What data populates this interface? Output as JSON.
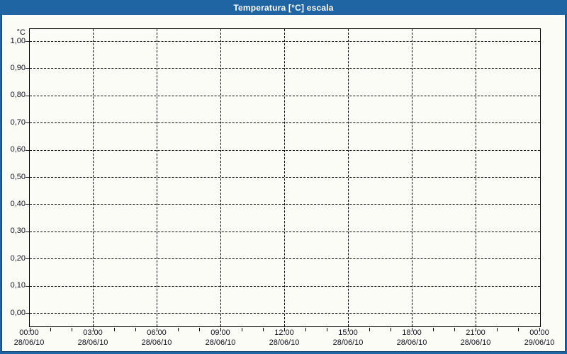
{
  "window": {
    "title": "Temperatura [°C] escala"
  },
  "colors": {
    "frame": "#2065A3",
    "frame_inner_line": "#1A4470",
    "titlebar_text": "#FFFFFF",
    "content_background": "#FCFCF6",
    "plot_border": "#000000",
    "gridline": "#000000",
    "axis_label_text": "#101020"
  },
  "chart_data": {
    "type": "line",
    "title": "Temperatura [°C] escala",
    "ylabel_unit": "°C",
    "y_axis": {
      "min": 0.0,
      "max": 1.0,
      "step": 0.1,
      "decimal_separator": ",",
      "tick_labels": [
        "1,00",
        "0,90",
        "0,80",
        "0,70",
        "0,60",
        "0,50",
        "0,40",
        "0,30",
        "0,20",
        "0,10",
        "0,00"
      ]
    },
    "x_axis": {
      "major_tick_interval": "3h",
      "minor_tick_interval": "1h",
      "ticks": [
        {
          "time": "00:00",
          "date": "28/06/10"
        },
        {
          "time": "03:00",
          "date": "28/06/10"
        },
        {
          "time": "06:00",
          "date": "28/06/10"
        },
        {
          "time": "09:00",
          "date": "28/06/10"
        },
        {
          "time": "12:00",
          "date": "28/06/10"
        },
        {
          "time": "15:00",
          "date": "28/06/10"
        },
        {
          "time": "18:00",
          "date": "28/06/10"
        },
        {
          "time": "21:00",
          "date": "28/06/10"
        },
        {
          "time": "00:00",
          "date": "29/06/10"
        }
      ]
    },
    "series": [],
    "grid": {
      "style": "dashed",
      "horizontal": true,
      "vertical": true
    },
    "legend": "none"
  }
}
